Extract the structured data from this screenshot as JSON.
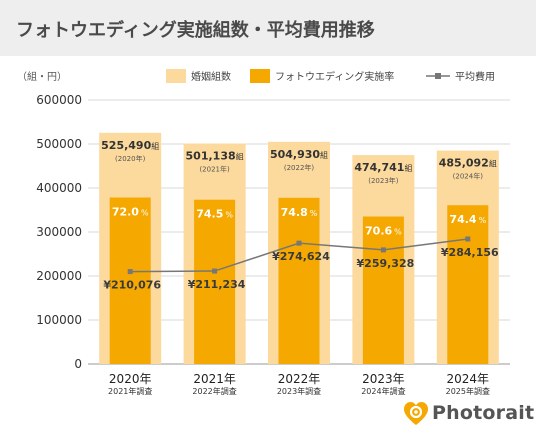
{
  "header": {
    "title": "フォトウエディング実施組数・平均費用推移"
  },
  "brand": {
    "name": "Photorait",
    "color": "#f5a800"
  },
  "colors": {
    "marriages_bar": "#fcd99c",
    "rate_bar": "#f5a800",
    "avg_line": "#777777",
    "grid": "#d8d8d8"
  },
  "chart_data": {
    "type": "bar",
    "ylabel": "（組・円）",
    "ylim": [
      0,
      600000
    ],
    "yticks": [
      "0",
      "100000",
      "200000",
      "300000",
      "400000",
      "500000",
      "600000"
    ],
    "categories": [
      "2020年",
      "2021年",
      "2022年",
      "2023年",
      "2024年"
    ],
    "category_sublabels": [
      "2021年調査",
      "2022年調査",
      "2023年調査",
      "2024年調査",
      "2025年調査"
    ],
    "legend": {
      "placement": "top",
      "items": [
        "婚姻組数",
        "フォトウエディング実施率",
        "平均費用"
      ]
    },
    "series": [
      {
        "name": "婚姻組数",
        "values": [
          525490,
          501138,
          504930,
          474741,
          485092
        ],
        "value_labels": [
          "525,490",
          "501,138",
          "504,930",
          "474,741",
          "485,092"
        ],
        "value_unit": "組",
        "year_labels": [
          "(2020年)",
          "(2021年)",
          "(2022年)",
          "(2023年)",
          "(2024年)"
        ]
      },
      {
        "name": "フォトウエディング実施率",
        "values": [
          72.0,
          74.5,
          74.8,
          70.6,
          74.4
        ],
        "value_labels": [
          "72.0",
          "74.5",
          "74.8",
          "70.6",
          "74.4"
        ],
        "value_unit": "%"
      },
      {
        "name": "平均費用",
        "values": [
          210076,
          211234,
          274624,
          259328,
          284156
        ],
        "value_labels": [
          "¥210,076",
          "¥211,234",
          "¥274,624",
          "¥259,328",
          "¥284,156"
        ]
      }
    ]
  }
}
